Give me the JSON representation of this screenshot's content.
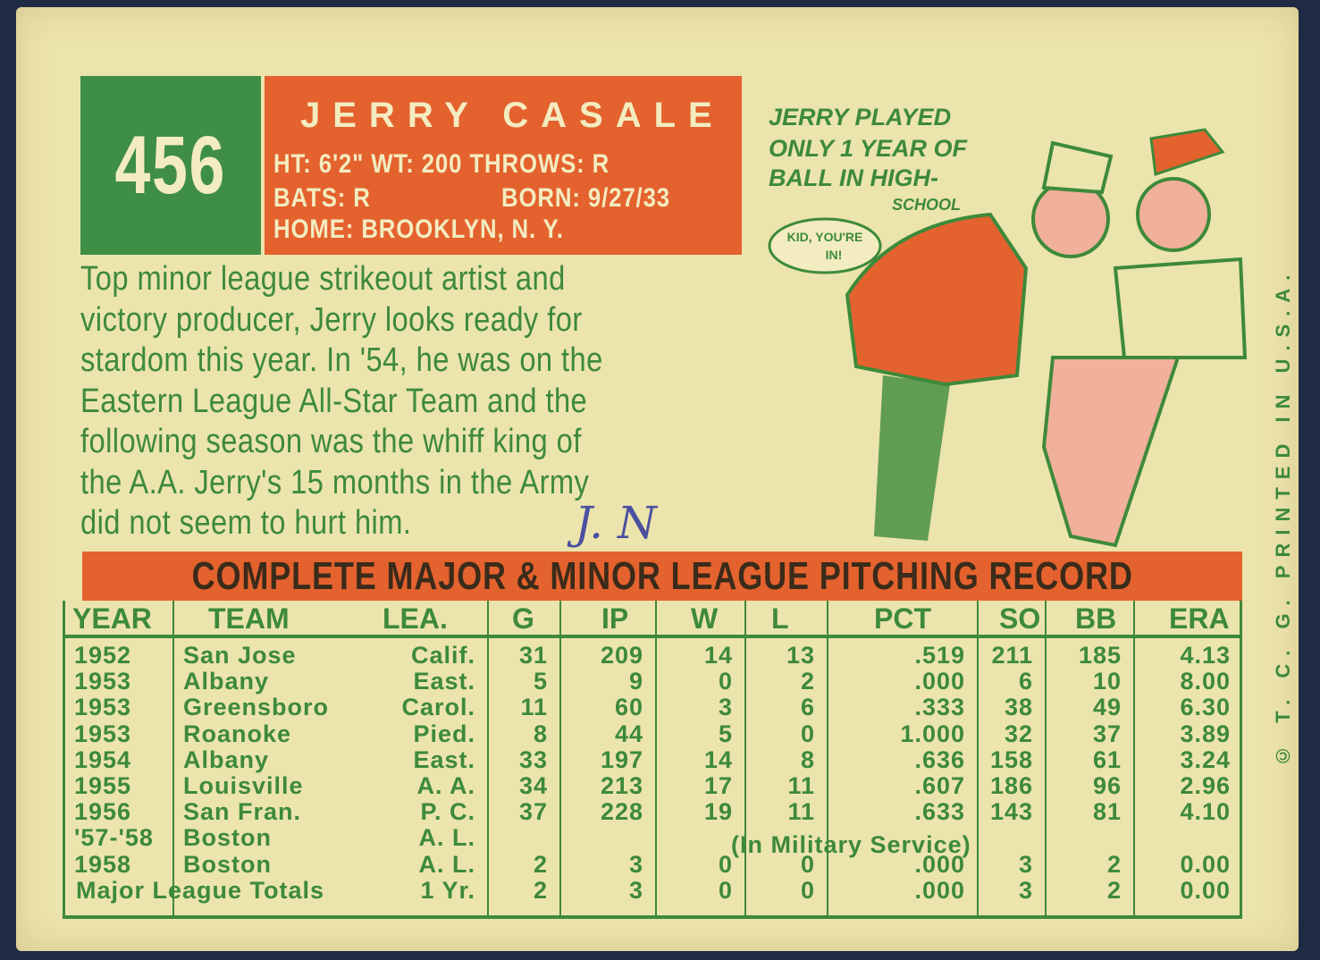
{
  "card": {
    "number": "456",
    "name": "JERRY CASALE",
    "line1": "HT: 6'2\"   WT: 200   THROWS: R",
    "line2a": "BATS: R",
    "line2b": "BORN: 9/27/33",
    "line3": "HOME: BROOKLYN, N. Y.",
    "bio": [
      "Top minor league strikeout artist and",
      "victory producer, Jerry looks ready for",
      "stardom this year. In '54, he was on the",
      "Eastern League All-Star Team and the",
      "following season was the whiff king of",
      "the A.A. Jerry's 15 months in the Army",
      "did not seem to hurt him."
    ],
    "handwriting": "J. N",
    "cartoon_caption": [
      "JERRY PLAYED",
      "ONLY 1 YEAR OF",
      "BALL IN HIGH-",
      "SCHOOL"
    ],
    "speech": [
      "KID, YOU'RE",
      "IN!"
    ],
    "copyright": "© T. C. G. PRINTED IN U.S.A.",
    "colors": {
      "cream": "#ece4ad",
      "green": "#3f8e45",
      "orange": "#e4622e"
    }
  },
  "record": {
    "title": "COMPLETE MAJOR & MINOR LEAGUE PITCHING RECORD",
    "headers": [
      "YEAR",
      "TEAM",
      "LEA.",
      "G",
      "IP",
      "W",
      "L",
      "PCT",
      "SO",
      "BB",
      "ERA"
    ],
    "rows": [
      [
        "1952",
        "San Jose",
        "Calif.",
        "31",
        "209",
        "14",
        "13",
        ".519",
        "211",
        "185",
        "4.13"
      ],
      [
        "1953",
        "Albany",
        "East.",
        "5",
        "9",
        "0",
        "2",
        ".000",
        "6",
        "10",
        "8.00"
      ],
      [
        "1953",
        "Greensboro",
        "Carol.",
        "11",
        "60",
        "3",
        "6",
        ".333",
        "38",
        "49",
        "6.30"
      ],
      [
        "1953",
        "Roanoke",
        "Pied.",
        "8",
        "44",
        "5",
        "0",
        "1.000",
        "32",
        "37",
        "3.89"
      ],
      [
        "1954",
        "Albany",
        "East.",
        "33",
        "197",
        "14",
        "8",
        ".636",
        "158",
        "61",
        "3.24"
      ],
      [
        "1955",
        "Louisville",
        "A. A.",
        "34",
        "213",
        "17",
        "11",
        ".607",
        "186",
        "96",
        "2.96"
      ],
      [
        "1956",
        "San Fran.",
        "P. C.",
        "37",
        "228",
        "19",
        "11",
        ".633",
        "143",
        "81",
        "4.10"
      ],
      [
        "'57-'58",
        "Boston",
        "A. L.",
        "",
        "",
        "",
        "",
        "",
        "",
        "",
        ""
      ],
      [
        "1958",
        "Boston",
        "A. L.",
        "2",
        "3",
        "0",
        "0",
        ".000",
        "3",
        "2",
        "0.00"
      ]
    ],
    "military_note": "(In Military Service)",
    "totals": {
      "label": "Major League Totals",
      "lea": "1 Yr.",
      "values": [
        "2",
        "3",
        "0",
        "0",
        ".000",
        "3",
        "2",
        "0.00"
      ]
    }
  }
}
